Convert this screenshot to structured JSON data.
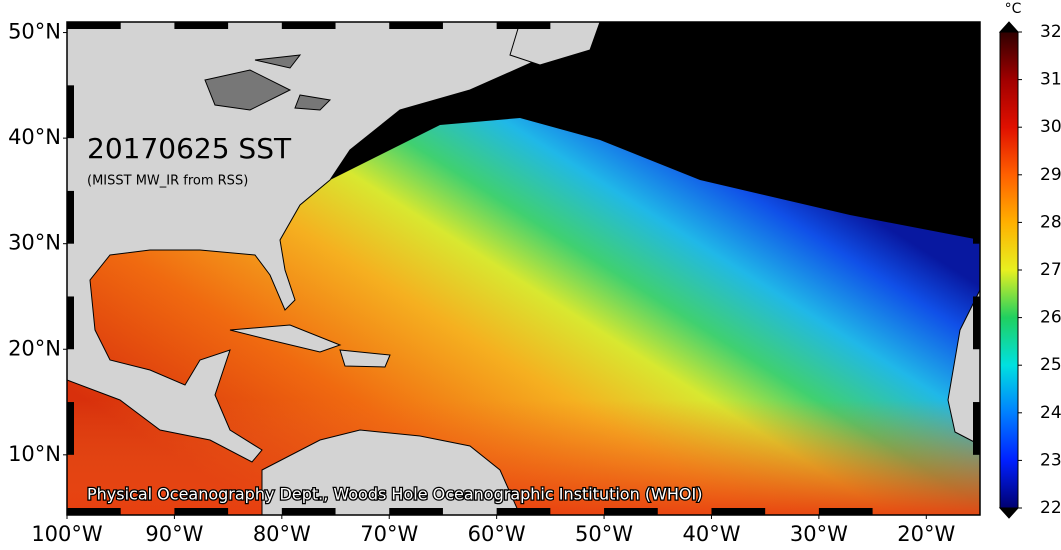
{
  "map": {
    "title": "20170625 SST",
    "subtitle": "(MISST MW_IR from RSS)",
    "credit": "Physical Oceanography Dept., Woods Hole Oceanographic Institution (WHOI)",
    "lon_range": [
      -100,
      -15
    ],
    "lat_range": [
      4.3,
      51
    ],
    "lon_ticks": [
      {
        "value": -100,
        "label": "100°W"
      },
      {
        "value": -90,
        "label": "90°W"
      },
      {
        "value": -80,
        "label": "80°W"
      },
      {
        "value": -70,
        "label": "70°W"
      },
      {
        "value": -60,
        "label": "60°W"
      },
      {
        "value": -50,
        "label": "50°W"
      },
      {
        "value": -40,
        "label": "40°W"
      },
      {
        "value": -30,
        "label": "30°W"
      },
      {
        "value": -20,
        "label": "20°W"
      }
    ],
    "lat_ticks": [
      {
        "value": 10,
        "label": "10°N"
      },
      {
        "value": 20,
        "label": "20°N"
      },
      {
        "value": 30,
        "label": "30°N"
      },
      {
        "value": 40,
        "label": "40°N"
      },
      {
        "value": 50,
        "label": "50°N"
      }
    ],
    "colorbar": {
      "unit": "°C",
      "range": [
        22,
        32
      ],
      "ticks": [
        22,
        23,
        24,
        25,
        26,
        27,
        28,
        29,
        30,
        31,
        32
      ]
    }
  }
}
